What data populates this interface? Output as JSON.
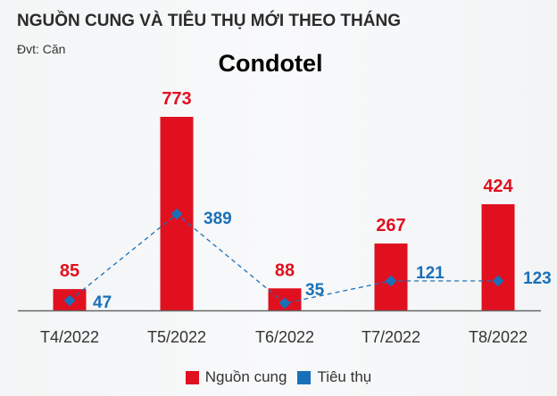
{
  "header": {
    "title": "NGUỒN CUNG VÀ TIÊU THỤ MỚI THEO THÁNG",
    "unit": "Đvt: Căn",
    "subtitle": "Condotel"
  },
  "colors": {
    "supply": "#e0101f",
    "consumption": "#1a70b8",
    "axis": "#666666"
  },
  "legend": [
    {
      "label": "Nguồn cung",
      "color": "#e0101f"
    },
    {
      "label": "Tiêu thụ",
      "color": "#1a70b8"
    }
  ],
  "chart_data": {
    "type": "bar",
    "title": "NGUỒN CUNG VÀ TIÊU THỤ MỚI THEO THÁNG",
    "subtitle": "Condotel",
    "unit": "Đvt: Căn",
    "categories": [
      "T4/2022",
      "T5/2022",
      "T6/2022",
      "T7/2022",
      "T8/2022"
    ],
    "series": [
      {
        "name": "Nguồn cung",
        "type": "bar",
        "color": "#e0101f",
        "values": [
          85,
          773,
          88,
          267,
          424
        ]
      },
      {
        "name": "Tiêu thụ",
        "type": "line",
        "style": "dashed",
        "marker": "diamond",
        "color": "#1a70b8",
        "values": [
          47,
          389,
          35,
          121,
          123
        ]
      }
    ],
    "xlabel": "",
    "ylabel": "",
    "ylim": [
      0,
      800
    ],
    "grid": false,
    "legend_position": "bottom",
    "data_labels": true
  }
}
